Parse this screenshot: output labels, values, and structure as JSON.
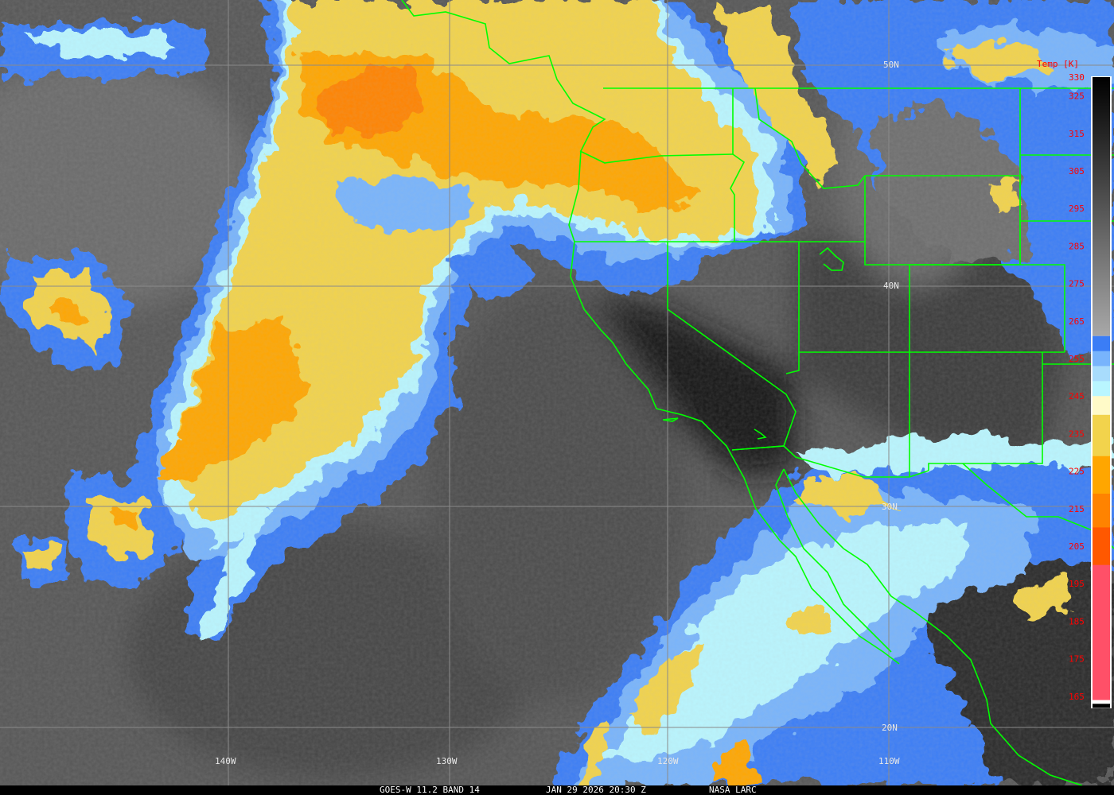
{
  "caption": {
    "satellite": "GOES-W 11.2 BAND 14",
    "datetime": "JAN 29 2026 20:30 Z",
    "credit": "NASA LARC"
  },
  "grid": {
    "lat_labels": [
      "50N",
      "40N",
      "30N",
      "20N"
    ],
    "lon_labels": [
      "140W",
      "130W",
      "120W",
      "110W"
    ],
    "line_color": "#8a8a8a"
  },
  "boundaries": {
    "color": "#00ff00"
  },
  "colorbar": {
    "title": "Temp [K]",
    "label_color": "#ff0000",
    "tick_labels": [
      "330",
      "325",
      "315",
      "305",
      "295",
      "285",
      "275",
      "265",
      "255",
      "245",
      "235",
      "225",
      "215",
      "205",
      "195",
      "185",
      "175",
      "165"
    ],
    "tick_values": [
      330,
      325,
      315,
      305,
      295,
      285,
      275,
      265,
      255,
      245,
      235,
      225,
      215,
      205,
      195,
      185,
      175,
      165
    ],
    "range_k": [
      162,
      330
    ],
    "grayscale_range_k": [
      261,
      330
    ],
    "bands": [
      {
        "from": 261,
        "to": 257,
        "color": "#3b7df6"
      },
      {
        "from": 257,
        "to": 253,
        "color": "#78b4fc"
      },
      {
        "from": 253,
        "to": 249,
        "color": "#a8dcfc"
      },
      {
        "from": 249,
        "to": 245,
        "color": "#b9f6ff"
      },
      {
        "from": 245,
        "to": 240,
        "color": "#fffac8"
      },
      {
        "from": 240,
        "to": 229,
        "color": "#f2d34c"
      },
      {
        "from": 229,
        "to": 219,
        "color": "#ffa600"
      },
      {
        "from": 219,
        "to": 210,
        "color": "#ff8300"
      },
      {
        "from": 210,
        "to": 200,
        "color": "#ff5800"
      },
      {
        "from": 200,
        "to": 164,
        "color": "#ff5068"
      },
      {
        "from": 164,
        "to": 163,
        "color": "#ffffff"
      },
      {
        "from": 163,
        "to": 162,
        "color": "#000000"
      }
    ]
  }
}
